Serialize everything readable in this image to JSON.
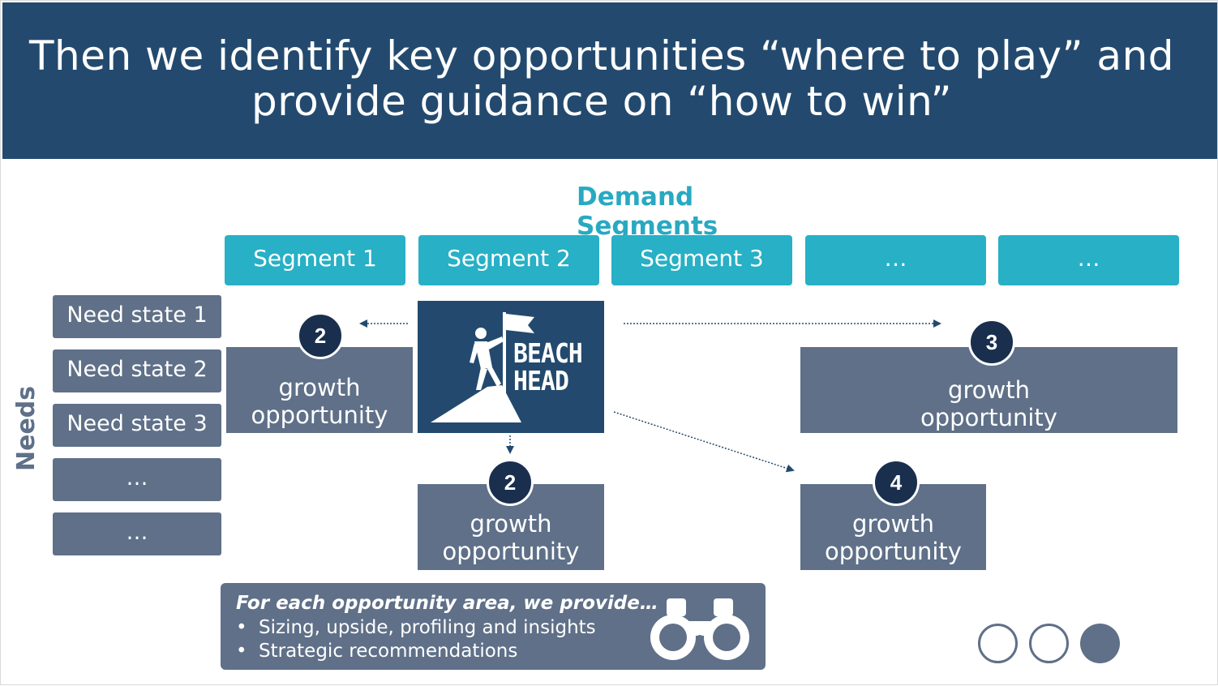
{
  "title": "Then we identify key opportunities “where to play” and provide guidance on “how to win”",
  "segments_heading": "Demand Segments",
  "segments": [
    "Segment 1",
    "Segment 2",
    "Segment 3",
    "…",
    "…"
  ],
  "needs_label": "Needs",
  "need_states": [
    "Need state 1",
    "Need state 2",
    "Need state 3",
    "…",
    "…"
  ],
  "beachhead": {
    "line1": "BEACH",
    "line2": "HEAD"
  },
  "opportunities": [
    {
      "number": "2",
      "line1": "growth",
      "line2": "opportunity"
    },
    {
      "number": "2",
      "line1": "growth",
      "line2": "opportunity"
    },
    {
      "number": "3",
      "line1": "growth",
      "line2": "opportunity"
    },
    {
      "number": "4",
      "line1": "growth",
      "line2": "opportunity"
    }
  ],
  "info": {
    "title": "For each opportunity area, we provide…",
    "bullets": [
      "Sizing, upside, profiling and insights",
      "Strategic recommendations"
    ],
    "bullet_char": "•",
    "icon": "binoculars-icon"
  },
  "progress": {
    "total": 3,
    "current": 3
  },
  "colors": {
    "header": "#234a6e",
    "segment": "#27b0c6",
    "need": "#5f7088",
    "badge": "#1a2f4e",
    "heading": "#28a9c2"
  }
}
